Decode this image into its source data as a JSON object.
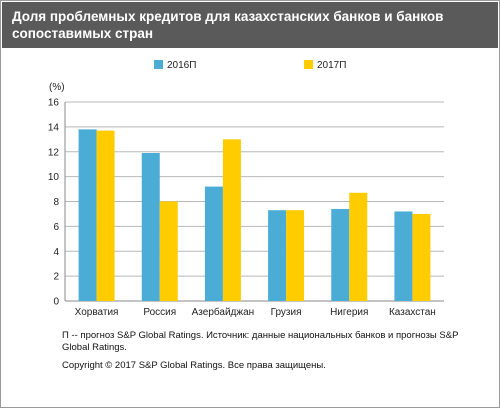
{
  "title": "Доля проблемных кредитов для казахстанских банков и банков сопоставимых стран",
  "footnote": "П -- прогноз S&P Global Ratings. Источник: данные национальных банков и прогнозы S&P Global Ratings.",
  "copyright": "Copyright © 2017 S&P Global Ratings. Все права защищены.",
  "colors": {
    "header_bg": "#5a5a5a",
    "series_2016": "#4bacd6",
    "series_2017": "#ffcc00",
    "grid": "#b8b8b8"
  },
  "chart_data": {
    "type": "bar",
    "categories": [
      "Хорватия",
      "Россия",
      "Азербайджан",
      "Грузия",
      "Нигерия",
      "Казахстан"
    ],
    "series": [
      {
        "name": "2016П",
        "values": [
          13.8,
          11.9,
          9.2,
          7.3,
          7.4,
          7.2
        ],
        "color": "#4bacd6"
      },
      {
        "name": "2017П",
        "values": [
          13.7,
          8.0,
          13.0,
          7.3,
          8.7,
          7.0
        ],
        "color": "#ffcc00"
      }
    ],
    "ylabel": "(%)",
    "ylim": [
      0,
      16
    ],
    "yticks": [
      0,
      2,
      4,
      6,
      8,
      10,
      12,
      14,
      16
    ],
    "grid": true,
    "legend": "top"
  }
}
